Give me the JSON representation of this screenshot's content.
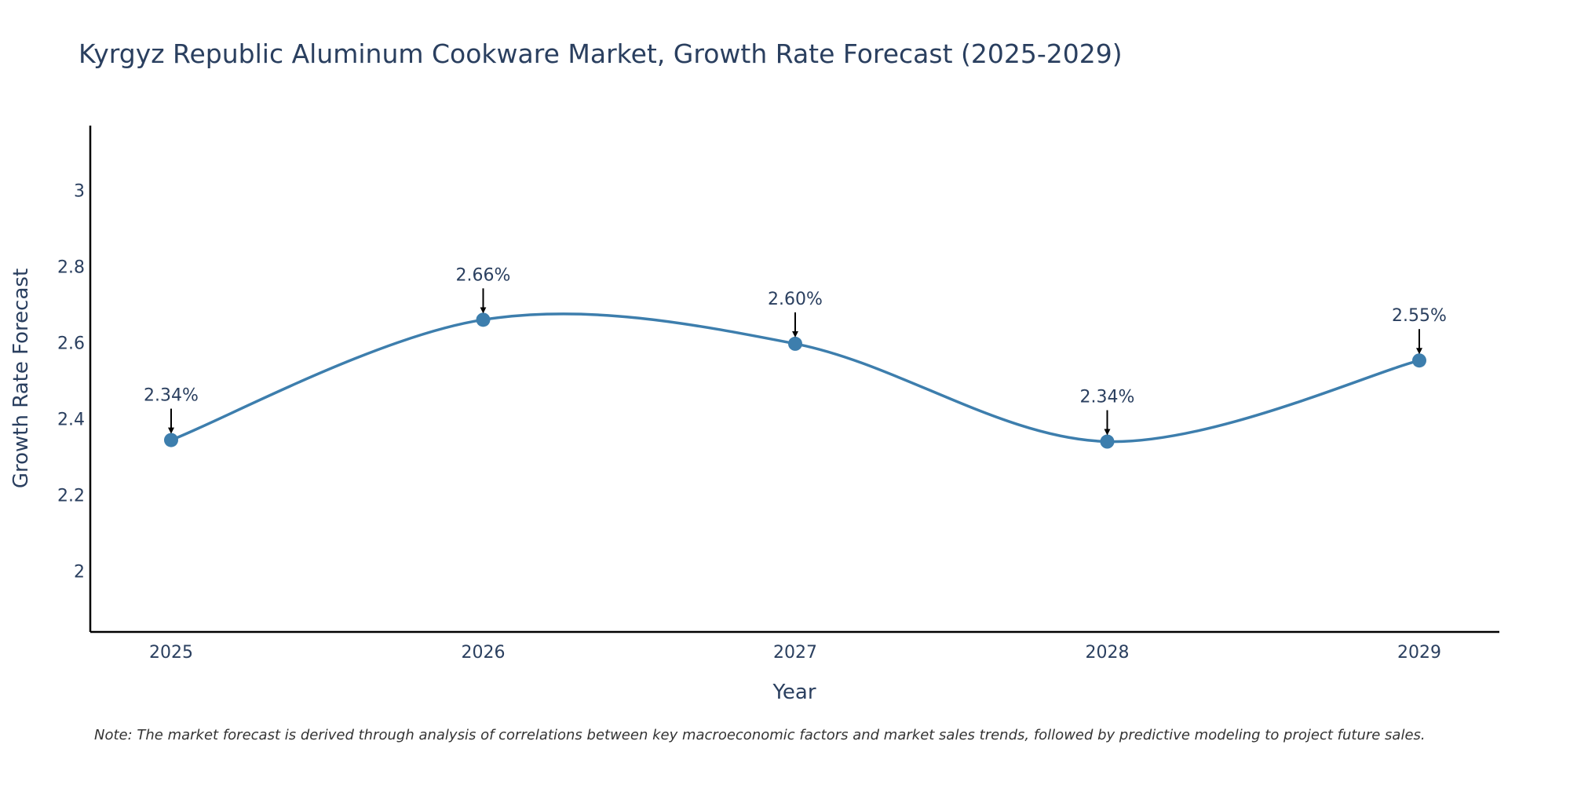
{
  "chart_data": {
    "type": "line",
    "title": "Kyrgyz Republic Aluminum Cookware Market, Growth Rate Forecast (2025-2029)",
    "xlabel": "Year",
    "ylabel": "Growth Rate Forecast",
    "categories": [
      "2025",
      "2026",
      "2027",
      "2028",
      "2029"
    ],
    "values": [
      2.344,
      2.66,
      2.597,
      2.34,
      2.553
    ],
    "data_labels": [
      "2.34%",
      "2.66%",
      "2.60%",
      "2.34%",
      "2.55%"
    ],
    "yticks": [
      2,
      2.2,
      2.4,
      2.6,
      2.8,
      3
    ],
    "ytick_labels": [
      "2",
      "2.2",
      "2.4",
      "2.6",
      "2.8",
      "3"
    ],
    "ylim": [
      1.84,
      3.17
    ],
    "line_color": "#3d7ead",
    "marker_color": "#3d7ead",
    "grid": false,
    "legend": "none",
    "note": "Note: The market forecast is derived through analysis of correlations between key macroeconomic factors and market sales trends, followed by predictive modeling to project future sales."
  }
}
